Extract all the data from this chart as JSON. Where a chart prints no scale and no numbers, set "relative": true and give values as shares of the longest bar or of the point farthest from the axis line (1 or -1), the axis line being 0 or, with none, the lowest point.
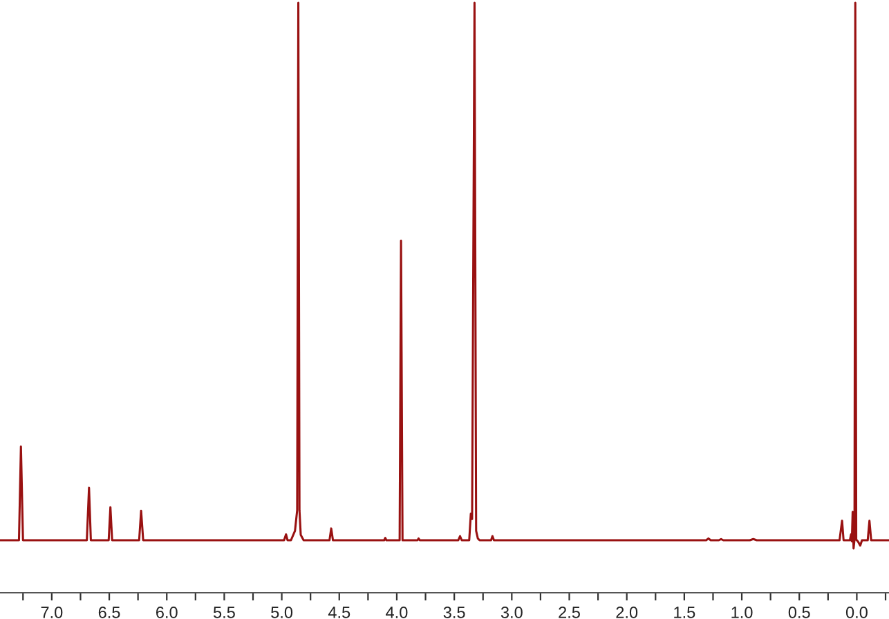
{
  "chart_data": {
    "type": "line",
    "relative": true,
    "color": "#991111",
    "x": [
      7.45,
      7.285,
      7.268,
      7.25,
      6.695,
      6.676,
      6.66,
      6.505,
      6.49,
      6.475,
      6.24,
      6.223,
      6.205,
      4.98,
      4.963,
      4.95,
      4.92,
      4.885,
      4.866,
      4.856,
      4.846,
      4.835,
      4.81,
      4.585,
      4.57,
      4.555,
      4.11,
      4.1,
      4.09,
      3.975,
      3.963,
      3.95,
      3.82,
      3.81,
      3.8,
      3.465,
      3.45,
      3.435,
      3.37,
      3.356,
      3.345,
      3.324,
      3.31,
      3.295,
      3.28,
      3.18,
      3.168,
      3.155,
      1.31,
      1.29,
      1.27,
      1.2,
      1.18,
      1.16,
      0.93,
      0.9,
      0.87,
      0.15,
      0.128,
      0.115,
      0.06,
      0.05,
      0.043,
      0.036,
      0.028,
      0.02,
      0.013,
      0.005,
      -0.01,
      -0.03,
      -0.045,
      -0.095,
      -0.11,
      -0.125,
      -0.28
    ],
    "values": [
      0.089,
      0.089,
      0.248,
      0.089,
      0.089,
      0.178,
      0.089,
      0.089,
      0.145,
      0.089,
      0.089,
      0.139,
      0.089,
      0.089,
      0.099,
      0.089,
      0.089,
      0.105,
      0.14,
      1,
      0.14,
      0.098,
      0.089,
      0.089,
      0.109,
      0.089,
      0.089,
      0.093,
      0.089,
      0.089,
      0.597,
      0.089,
      0.089,
      0.092,
      0.089,
      0.089,
      0.096,
      0.089,
      0.089,
      0.134,
      0.125,
      1,
      0.105,
      0.092,
      0.089,
      0.089,
      0.096,
      0.089,
      0.089,
      0.092,
      0.089,
      0.089,
      0.091,
      0.089,
      0.089,
      0.091,
      0.089,
      0.089,
      0.122,
      0.089,
      0.089,
      0.099,
      0.087,
      0.137,
      0.075,
      0.09,
      1,
      0.09,
      0.087,
      0.08,
      0.089,
      0.089,
      0.122,
      0.089,
      0.089
    ],
    "xlim": [
      7.45,
      -0.28
    ],
    "xticks": [
      {
        "value": 7.25,
        "label": null
      },
      {
        "value": 7,
        "label": "7.0"
      },
      {
        "value": 6.75,
        "label": null
      },
      6.5,
      {
        "value": 6.25,
        "label": null
      },
      {
        "value": 6,
        "label": "6.0"
      },
      {
        "value": 5.75,
        "label": null
      },
      5.5,
      {
        "value": 5.25,
        "label": null
      },
      {
        "value": 5,
        "label": "5.0"
      },
      {
        "value": 4.75,
        "label": null
      },
      4.5,
      {
        "value": 4.25,
        "label": null
      },
      {
        "value": 4,
        "label": "4.0"
      },
      {
        "value": 3.75,
        "label": null
      },
      3.5,
      {
        "value": 3.25,
        "label": null
      },
      {
        "value": 3,
        "label": "3.0"
      },
      {
        "value": 2.75,
        "label": null
      },
      2.5,
      {
        "value": 2.25,
        "label": null
      },
      {
        "value": 2,
        "label": "2.0"
      },
      {
        "value": 1.75,
        "label": null
      },
      1.5,
      {
        "value": 1.25,
        "label": null
      },
      {
        "value": 1,
        "label": "1.0"
      },
      {
        "value": 0.75,
        "label": null
      },
      0.5,
      {
        "value": 0.25,
        "label": null
      },
      {
        "value": 0,
        "label": "0.0"
      },
      {
        "value": -0.25,
        "label": null
      }
    ]
  }
}
